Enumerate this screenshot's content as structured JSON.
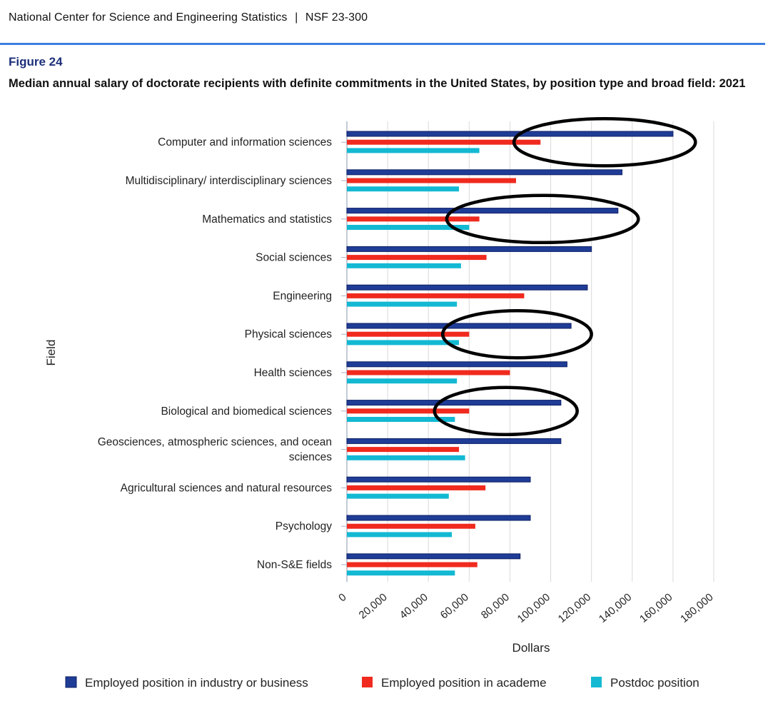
{
  "header": {
    "source": "National Center for Science and Engineering Statistics",
    "separator": "|",
    "report": "NSF 23-300"
  },
  "figure": {
    "label": "Figure 24",
    "title": "Median annual salary of doctorate recipients with definite commitments in the United States, by position type and broad field: 2021"
  },
  "colors": {
    "industry": "#1f3c96",
    "academe": "#f02a1e",
    "postdoc": "#13b9d3",
    "rule": "#3b7fe0",
    "annotation": "#000000"
  },
  "chart_data": {
    "type": "bar",
    "orientation": "horizontal",
    "title": "Median annual salary of doctorate recipients with definite commitments in the United States, by position type and broad field: 2021",
    "xlabel": "Dollars",
    "ylabel": "Field",
    "xlim": [
      0,
      180000
    ],
    "xticks": [
      "0",
      "20,000",
      "40,000",
      "60,000",
      "80,000",
      "100,000",
      "120,000",
      "140,000",
      "160,000",
      "180,000"
    ],
    "grid": true,
    "legend_position": "bottom",
    "categories": [
      [
        "Computer and information sciences"
      ],
      [
        "Multidisciplinary/ interdisciplinary sciences"
      ],
      [
        "Mathematics and statistics"
      ],
      [
        "Social sciences"
      ],
      [
        "Engineering"
      ],
      [
        "Physical sciences"
      ],
      [
        "Health sciences"
      ],
      [
        "Biological and biomedical sciences"
      ],
      [
        "Geosciences, atmospheric sciences, and ocean",
        "sciences"
      ],
      [
        "Agricultural sciences and natural resources"
      ],
      [
        "Psychology"
      ],
      [
        "Non-S&E fields"
      ]
    ],
    "series": [
      {
        "name": "Employed position in industry or business",
        "key": "industry",
        "values": [
          160000,
          135000,
          133000,
          120000,
          118000,
          110000,
          108000,
          105000,
          105000,
          90000,
          90000,
          85000
        ]
      },
      {
        "name": "Employed position in academe",
        "key": "academe",
        "values": [
          95000,
          83000,
          65000,
          68500,
          87000,
          60000,
          80000,
          60000,
          55000,
          68000,
          63000,
          64000
        ]
      },
      {
        "name": "Postdoc position",
        "key": "postdoc",
        "values": [
          65000,
          55000,
          60000,
          56000,
          54000,
          55000,
          54000,
          53000,
          58000,
          50000,
          51500,
          53000
        ]
      }
    ],
    "annotations": [
      {
        "shape": "ellipse",
        "category": "Computer and information sciences",
        "x_range": [
          82000,
          171000
        ]
      },
      {
        "shape": "ellipse",
        "category": "Mathematics and statistics",
        "x_range": [
          49000,
          143000
        ]
      },
      {
        "shape": "ellipse",
        "category": "Physical sciences",
        "x_range": [
          47000,
          120000
        ]
      },
      {
        "shape": "ellipse",
        "category": "Biological and biomedical sciences",
        "x_range": [
          43000,
          113000
        ]
      }
    ]
  }
}
